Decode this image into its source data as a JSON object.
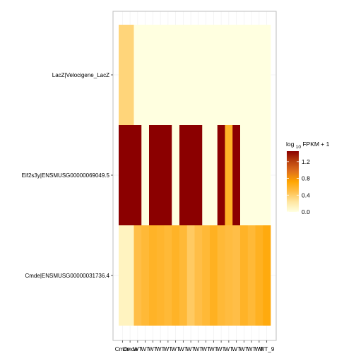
{
  "chart_data": {
    "type": "heatmap",
    "title": "",
    "xlabel": "",
    "ylabel": "",
    "rows": [
      "LacZ|Velocigene_LacZ",
      "Eif2s3y|ENSMUSG00000069049.5",
      "Cmde|ENSMUSG00000031736.4"
    ],
    "columns": [
      "Cmde",
      "Cmde",
      "WT",
      "WT",
      "WT",
      "WT",
      "WT",
      "WT",
      "WT",
      "WT",
      "WT",
      "WT",
      "WT",
      "WT",
      "WT",
      "WT",
      "WT",
      "WT",
      "WT",
      "WT_9"
    ],
    "values": [
      [
        0.35,
        0.35,
        0,
        0,
        0,
        0,
        0,
        0,
        0,
        0,
        0,
        0,
        0,
        0,
        0,
        0,
        0,
        0,
        0,
        0
      ],
      [
        1.45,
        1.45,
        1.45,
        0,
        1.45,
        1.45,
        1.45,
        0,
        1.45,
        1.45,
        1.45,
        0,
        0,
        1.45,
        0.6,
        1.45,
        0,
        0,
        0,
        0
      ],
      [
        0.12,
        0.12,
        0.5,
        0.55,
        0.6,
        0.58,
        0.55,
        0.6,
        0.55,
        0.42,
        0.5,
        0.55,
        0.62,
        0.55,
        0.52,
        0.5,
        0.6,
        0.55,
        0.62,
        0.68
      ]
    ],
    "legend": {
      "title_base": "log",
      "title_sub": "10",
      "title_rest": " FPKM + 1",
      "ticks": [
        1.2,
        0.8,
        0.4,
        0.0
      ],
      "tick_labels": [
        "1.2",
        "0.8",
        "0.4",
        "0.0"
      ],
      "range": [
        0,
        1.45
      ],
      "placement": "right"
    },
    "color_scale": [
      "#FFFFE0",
      "#FFE6A0",
      "#FFC04C",
      "#FFA500",
      "#E0701C",
      "#B8400E",
      "#8B0000"
    ],
    "panel_background": "#FFFFFF",
    "grid_color": "#EBEBEB",
    "panel_border_color": "#BEBEBE",
    "grid": true
  }
}
